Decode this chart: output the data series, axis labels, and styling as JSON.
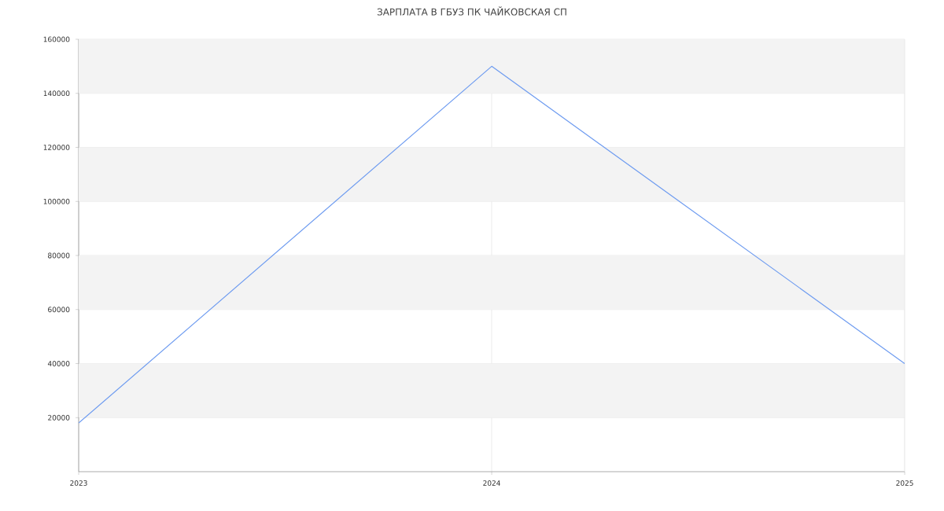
{
  "chart_data": {
    "type": "line",
    "title": "ЗАРПЛАТА В ГБУЗ ПК ЧАЙКОВСКАЯ СП",
    "x": [
      2023,
      2024,
      2025
    ],
    "series": [
      {
        "color": "#6d9bf0",
        "values": [
          18000,
          150000,
          40000
        ]
      }
    ],
    "xlim": [
      2023,
      2025
    ],
    "xticks": [
      2023,
      2024,
      2025
    ],
    "ylim": [
      0,
      160000
    ],
    "yticks": [
      20000,
      40000,
      60000,
      80000,
      100000,
      120000,
      140000,
      160000
    ],
    "bands": [
      {
        "axis": "y",
        "from": 20000,
        "to": 40000,
        "color": "#f3f3f3"
      },
      {
        "axis": "y",
        "from": 60000,
        "to": 80000,
        "color": "#f3f3f3"
      },
      {
        "axis": "y",
        "from": 100000,
        "to": 120000,
        "color": "#f3f3f3"
      },
      {
        "axis": "y",
        "from": 140000,
        "to": 160000,
        "color": "#f3f3f3"
      }
    ],
    "grid": true,
    "legend": false,
    "marker": "none",
    "line_style": "solid"
  }
}
